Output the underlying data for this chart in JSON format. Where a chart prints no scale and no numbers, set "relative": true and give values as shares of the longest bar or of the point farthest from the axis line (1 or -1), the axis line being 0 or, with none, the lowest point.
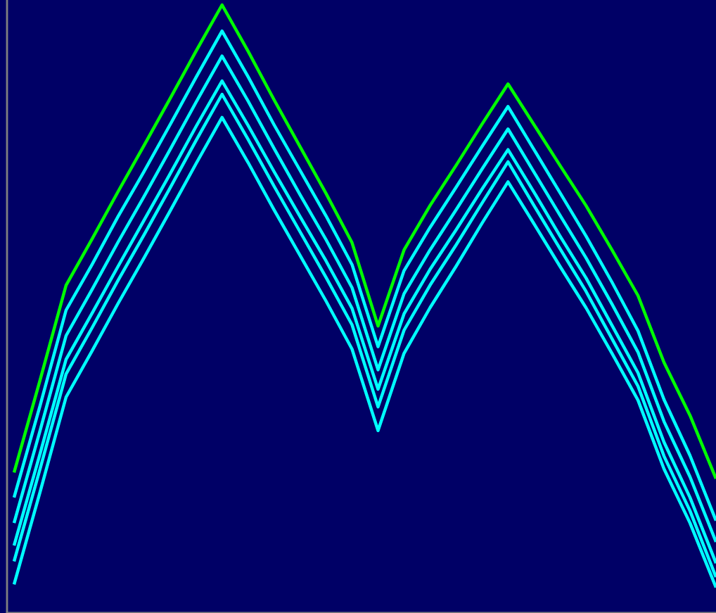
{
  "chart_data": {
    "type": "line",
    "relative": true,
    "grid": false,
    "marker": "none",
    "line_style": "solid",
    "categories": [
      null,
      null,
      null,
      null,
      null,
      null,
      null,
      null,
      null,
      null,
      null,
      null,
      null,
      null,
      null,
      null,
      null,
      null,
      null,
      null,
      null,
      null,
      null,
      null,
      null,
      null,
      null,
      null
    ],
    "series": [
      {
        "color": "#00ffff",
        "values": [
          0.047,
          0.199,
          0.355,
          0.431,
          0.509,
          0.584,
          0.661,
          0.739,
          0.815,
          0.741,
          0.663,
          0.588,
          0.513,
          0.434,
          0.3,
          0.427,
          0.502,
          0.57,
          0.641,
          0.709,
          0.64,
          0.57,
          0.502,
          0.427,
          0.35,
          0.237,
          0.148,
          0.042
        ]
      },
      {
        "color": "#00ffff",
        "values": [
          0.085,
          0.237,
          0.393,
          0.469,
          0.547,
          0.622,
          0.699,
          0.777,
          0.853,
          0.779,
          0.702,
          0.627,
          0.552,
          0.474,
          0.339,
          0.465,
          0.539,
          0.605,
          0.674,
          0.742,
          0.67,
          0.599,
          0.529,
          0.451,
          0.373,
          0.258,
          0.168,
          0.059
        ]
      },
      {
        "color": "#00ffff",
        "values": [
          0.111,
          0.262,
          0.417,
          0.493,
          0.57,
          0.646,
          0.722,
          0.8,
          0.875,
          0.802,
          0.726,
          0.652,
          0.579,
          0.501,
          0.368,
          0.492,
          0.565,
          0.63,
          0.697,
          0.762,
          0.692,
          0.62,
          0.551,
          0.473,
          0.395,
          0.281,
          0.19,
          0.082
        ]
      },
      {
        "color": "#00ffff",
        "values": [
          0.148,
          0.3,
          0.456,
          0.532,
          0.61,
          0.685,
          0.762,
          0.84,
          0.916,
          0.842,
          0.764,
          0.688,
          0.614,
          0.535,
          0.4,
          0.525,
          0.597,
          0.663,
          0.73,
          0.796,
          0.725,
          0.654,
          0.584,
          0.508,
          0.429,
          0.315,
          0.224,
          0.117
        ]
      },
      {
        "color": "#00ffff",
        "values": [
          0.19,
          0.341,
          0.498,
          0.573,
          0.652,
          0.726,
          0.803,
          0.881,
          0.957,
          0.882,
          0.803,
          0.728,
          0.653,
          0.573,
          0.438,
          0.563,
          0.634,
          0.7,
          0.767,
          0.833,
          0.762,
          0.691,
          0.62,
          0.544,
          0.464,
          0.351,
          0.259,
          0.152
        ]
      },
      {
        "color": "#00ff00",
        "values": [
          0.231,
          0.383,
          0.539,
          0.615,
          0.693,
          0.769,
          0.846,
          0.924,
          1,
          0.924,
          0.844,
          0.767,
          0.69,
          0.609,
          0.472,
          0.597,
          0.67,
          0.736,
          0.804,
          0.87,
          0.803,
          0.736,
          0.67,
          0.597,
          0.522,
          0.412,
          0.325,
          0.221
        ]
      }
    ]
  }
}
